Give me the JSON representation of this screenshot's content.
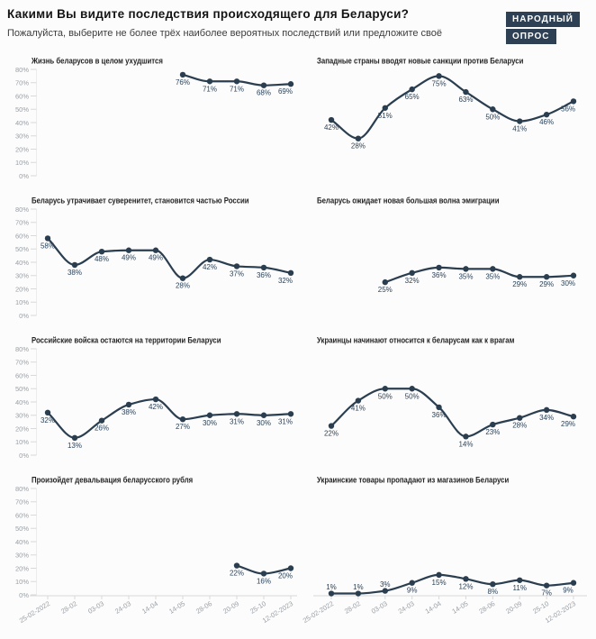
{
  "header": {
    "title": "Какими Вы видите последствия происходящего для Беларуси?",
    "subtitle": "Пожалуйста, выберите не более трёх наиболее вероятных последствий или предложите своё"
  },
  "logo": {
    "line1": "НАРОДНЫЙ",
    "line2": "ОПРОС"
  },
  "colors": {
    "background": "#fcfcfc",
    "title": "#141414",
    "subtitle": "#3d3d3d",
    "line": "#2b3e50",
    "point": "#2b3e50",
    "value_label": "#2d4257",
    "panel_title": "#232323",
    "axis_text": "#9aa0a6",
    "tick": "#d9d9d9",
    "axis_line": "#ececec",
    "logo_bg": "#2e4154",
    "logo_text": "#ffffff"
  },
  "chart_data": {
    "type": "line",
    "layout": "small-multiples-2x4",
    "x": [
      "25-02-2022",
      "28-02",
      "03-03",
      "24-03",
      "14-04",
      "14-05",
      "28-06",
      "20-09",
      "25-10",
      "12-02-2023"
    ],
    "ylim": [
      0,
      80
    ],
    "y_ticks": [
      "80%",
      "70%",
      "60%",
      "50%",
      "40%",
      "30%",
      "20%",
      "10%",
      "0%"
    ],
    "unit": "%",
    "grid": "y ticks on left column only, x labels on bottom row only",
    "legend": "none",
    "panels": [
      {
        "title": "Жизнь беларусов в целом ухудшится",
        "values": [
          null,
          null,
          null,
          null,
          null,
          76,
          71,
          71,
          68,
          69
        ]
      },
      {
        "title": "Западные страны вводят новые санкции против Беларуси",
        "values": [
          42,
          28,
          51,
          65,
          75,
          63,
          50,
          41,
          46,
          56
        ]
      },
      {
        "title": "Беларусь утрачивает суверенитет, становится частью России",
        "values": [
          58,
          38,
          48,
          49,
          49,
          28,
          42,
          37,
          36,
          32
        ]
      },
      {
        "title": "Беларусь ожидает новая большая волна эмиграции",
        "values": [
          null,
          null,
          25,
          32,
          36,
          35,
          35,
          29,
          29,
          30
        ]
      },
      {
        "title": "Российские войска остаются на территории Беларуси",
        "values": [
          32,
          13,
          26,
          38,
          42,
          27,
          30,
          31,
          30,
          31
        ]
      },
      {
        "title": "Украинцы начинают относится к беларусам как к врагам",
        "values": [
          22,
          41,
          50,
          50,
          36,
          14,
          23,
          28,
          34,
          29
        ]
      },
      {
        "title": "Произойдет девальвация беларусского рубля",
        "values": [
          null,
          null,
          null,
          null,
          null,
          null,
          null,
          22,
          16,
          20
        ]
      },
      {
        "title": "Украинские товары пропадают из магазинов Беларуси",
        "values": [
          1,
          1,
          3,
          9,
          15,
          12,
          8,
          11,
          7,
          9
        ]
      }
    ]
  }
}
